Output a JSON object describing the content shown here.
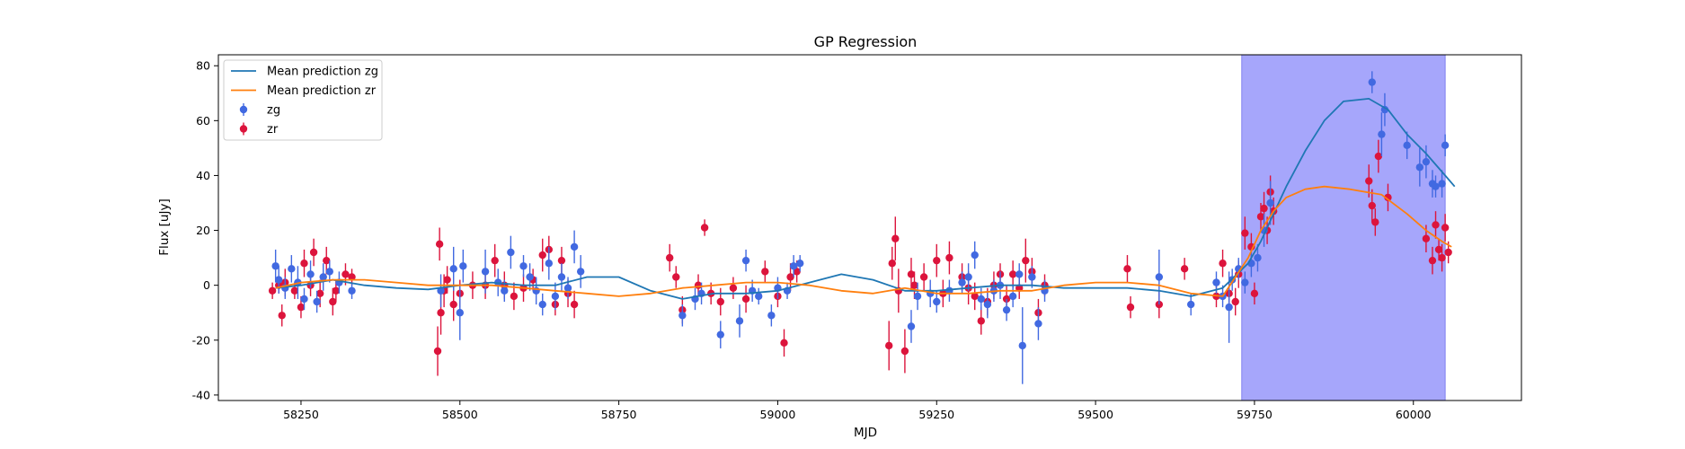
{
  "chart_data": {
    "type": "scatter",
    "title": "GP Regression",
    "xlabel": "MJD",
    "ylabel": "Flux [uJy]",
    "xlim": [
      58120,
      60170
    ],
    "ylim": [
      -42,
      84
    ],
    "xticks": [
      58250,
      58500,
      58750,
      59000,
      59250,
      59500,
      59750,
      60000
    ],
    "yticks": [
      -40,
      -20,
      0,
      20,
      40,
      60,
      80
    ],
    "grid": false,
    "legend_position": "top-left",
    "shaded_region": {
      "x0": 59730,
      "x1": 60050,
      "color": "#a6a6fb"
    },
    "colors": {
      "zg_points": "#4169e1",
      "zr_points": "#dc143c",
      "zg_mean": "#1f77b4",
      "zr_mean": "#ff7f0e"
    },
    "lines": [
      {
        "name": "Mean prediction zg",
        "color": "#1f77b4",
        "x": [
          58210,
          58250,
          58300,
          58350,
          58400,
          58450,
          58500,
          58550,
          58600,
          58650,
          58700,
          58750,
          58800,
          58850,
          58900,
          58950,
          59000,
          59050,
          59100,
          59150,
          59200,
          59250,
          59300,
          59350,
          59400,
          59450,
          59500,
          59550,
          59600,
          59650,
          59700,
          59740,
          59760,
          59780,
          59800,
          59830,
          59860,
          59890,
          59930,
          59960,
          59990,
          60020,
          60050,
          60065
        ],
        "y": [
          -1,
          0,
          2,
          0,
          -1,
          -1.5,
          0,
          1,
          0,
          0,
          3,
          3,
          -2,
          -5,
          -3,
          -3,
          -2,
          1,
          4,
          2,
          -2,
          -2,
          -1,
          0,
          0,
          -1,
          -1,
          -1,
          -2,
          -4,
          -1,
          8,
          16,
          26,
          36,
          49,
          60,
          67,
          68,
          64,
          55,
          48,
          40,
          36
        ]
      },
      {
        "name": "Mean prediction zr",
        "color": "#ff7f0e",
        "x": [
          58210,
          58250,
          58300,
          58350,
          58400,
          58450,
          58500,
          58550,
          58600,
          58650,
          58700,
          58750,
          58800,
          58850,
          58900,
          58950,
          59000,
          59050,
          59100,
          59150,
          59200,
          59250,
          59300,
          59350,
          59400,
          59450,
          59500,
          59550,
          59600,
          59650,
          59700,
          59740,
          59760,
          59780,
          59800,
          59830,
          59860,
          59900,
          59950,
          59990,
          60020,
          60045,
          60060
        ],
        "y": [
          -1,
          1,
          2,
          2,
          1,
          0,
          0,
          0,
          -1,
          -2,
          -3,
          -4,
          -3,
          -1,
          0,
          1,
          1,
          0,
          -2,
          -3,
          -1,
          -3,
          -3,
          -2,
          -2,
          0,
          1,
          1,
          0,
          -3,
          -4,
          10,
          20,
          27,
          32,
          35,
          36,
          35,
          33,
          26,
          20,
          16,
          14
        ]
      }
    ],
    "series": [
      {
        "name": "zg",
        "color": "#4169e1",
        "points": [
          [
            58210,
            7,
            6
          ],
          [
            58215,
            2,
            5
          ],
          [
            58225,
            -1,
            4
          ],
          [
            58235,
            6,
            5
          ],
          [
            58245,
            1,
            6
          ],
          [
            58255,
            -5,
            4
          ],
          [
            58265,
            4,
            5
          ],
          [
            58275,
            -6,
            4
          ],
          [
            58285,
            3,
            5
          ],
          [
            58295,
            5,
            4
          ],
          [
            58310,
            1,
            4
          ],
          [
            58330,
            -2,
            3
          ],
          [
            58470,
            -2,
            6
          ],
          [
            58490,
            6,
            8
          ],
          [
            58500,
            -10,
            10
          ],
          [
            58505,
            7,
            6
          ],
          [
            58540,
            5,
            8
          ],
          [
            58560,
            1,
            5
          ],
          [
            58570,
            -2,
            4
          ],
          [
            58580,
            12,
            6
          ],
          [
            58600,
            7,
            4
          ],
          [
            58610,
            3,
            5
          ],
          [
            58620,
            -2,
            5
          ],
          [
            58630,
            -7,
            4
          ],
          [
            58640,
            8,
            6
          ],
          [
            58650,
            -4,
            5
          ],
          [
            58660,
            3,
            5
          ],
          [
            58670,
            -1,
            4
          ],
          [
            58680,
            14,
            6
          ],
          [
            58690,
            5,
            6
          ],
          [
            58850,
            -11,
            4
          ],
          [
            58870,
            -5,
            4
          ],
          [
            58880,
            -3,
            4
          ],
          [
            58910,
            -18,
            5
          ],
          [
            58940,
            -13,
            6
          ],
          [
            58950,
            9,
            4
          ],
          [
            58960,
            -2,
            4
          ],
          [
            58970,
            -4,
            3
          ],
          [
            58990,
            -11,
            4
          ],
          [
            59000,
            -1,
            4
          ],
          [
            59015,
            -2,
            3
          ],
          [
            59025,
            7,
            4
          ],
          [
            59035,
            8,
            3
          ],
          [
            59210,
            -15,
            6
          ],
          [
            59220,
            -4,
            5
          ],
          [
            59240,
            -3,
            5
          ],
          [
            59250,
            -6,
            4
          ],
          [
            59270,
            -2,
            4
          ],
          [
            59290,
            1,
            4
          ],
          [
            59300,
            3,
            5
          ],
          [
            59310,
            11,
            5
          ],
          [
            59320,
            -5,
            4
          ],
          [
            59330,
            -7,
            5
          ],
          [
            59340,
            -2,
            4
          ],
          [
            59350,
            0,
            5
          ],
          [
            59360,
            -9,
            4
          ],
          [
            59370,
            -4,
            4
          ],
          [
            59380,
            4,
            4
          ],
          [
            59385,
            -22,
            14
          ],
          [
            59400,
            3,
            4
          ],
          [
            59410,
            -14,
            6
          ],
          [
            59420,
            -2,
            4
          ],
          [
            59600,
            3,
            10
          ],
          [
            59650,
            -7,
            4
          ],
          [
            59690,
            1,
            4
          ],
          [
            59700,
            -4,
            4
          ],
          [
            59710,
            -8,
            13
          ],
          [
            59715,
            2,
            4
          ],
          [
            59725,
            6,
            4
          ],
          [
            59735,
            1,
            4
          ],
          [
            59745,
            8,
            5
          ],
          [
            59755,
            10,
            5
          ],
          [
            59765,
            20,
            6
          ],
          [
            59775,
            30,
            8
          ],
          [
            59935,
            74,
            4
          ],
          [
            59950,
            55,
            8
          ],
          [
            59955,
            64,
            6
          ],
          [
            59990,
            51,
            5
          ],
          [
            60010,
            43,
            7
          ],
          [
            60020,
            45,
            6
          ],
          [
            60030,
            37,
            5
          ],
          [
            60035,
            36,
            4
          ],
          [
            60045,
            37,
            5
          ],
          [
            60050,
            51,
            4
          ]
        ]
      },
      {
        "name": "zr",
        "color": "#dc143c",
        "points": [
          [
            58205,
            -2,
            3
          ],
          [
            58215,
            0,
            3
          ],
          [
            58220,
            -11,
            4
          ],
          [
            58225,
            1,
            5
          ],
          [
            58240,
            -2,
            3
          ],
          [
            58250,
            -8,
            4
          ],
          [
            58255,
            8,
            5
          ],
          [
            58265,
            0,
            4
          ],
          [
            58270,
            12,
            5
          ],
          [
            58280,
            -3,
            5
          ],
          [
            58290,
            9,
            5
          ],
          [
            58300,
            -6,
            5
          ],
          [
            58305,
            -2,
            4
          ],
          [
            58320,
            4,
            4
          ],
          [
            58330,
            3,
            3
          ],
          [
            58465,
            -24,
            9
          ],
          [
            58468,
            15,
            6
          ],
          [
            58470,
            -10,
            8
          ],
          [
            58475,
            -2,
            6
          ],
          [
            58480,
            2,
            5
          ],
          [
            58490,
            -7,
            6
          ],
          [
            58500,
            -3,
            5
          ],
          [
            58520,
            0,
            5
          ],
          [
            58540,
            0,
            5
          ],
          [
            58555,
            9,
            6
          ],
          [
            58570,
            0,
            5
          ],
          [
            58585,
            -4,
            5
          ],
          [
            58600,
            -1,
            5
          ],
          [
            58615,
            2,
            4
          ],
          [
            58630,
            11,
            6
          ],
          [
            58640,
            13,
            5
          ],
          [
            58650,
            -7,
            4
          ],
          [
            58660,
            9,
            5
          ],
          [
            58670,
            -3,
            5
          ],
          [
            58680,
            -7,
            5
          ],
          [
            58830,
            10,
            5
          ],
          [
            58840,
            3,
            4
          ],
          [
            58850,
            -9,
            5
          ],
          [
            58875,
            0,
            4
          ],
          [
            58885,
            21,
            3
          ],
          [
            58895,
            -3,
            4
          ],
          [
            58910,
            -6,
            5
          ],
          [
            58930,
            -1,
            4
          ],
          [
            58950,
            -5,
            5
          ],
          [
            58980,
            5,
            4
          ],
          [
            59000,
            -4,
            4
          ],
          [
            59010,
            -21,
            5
          ],
          [
            59020,
            3,
            5
          ],
          [
            59030,
            5,
            4
          ],
          [
            59175,
            -22,
            9
          ],
          [
            59180,
            8,
            6
          ],
          [
            59185,
            17,
            8
          ],
          [
            59190,
            -2,
            8
          ],
          [
            59200,
            -24,
            8
          ],
          [
            59210,
            4,
            6
          ],
          [
            59215,
            0,
            5
          ],
          [
            59230,
            3,
            5
          ],
          [
            59250,
            9,
            6
          ],
          [
            59260,
            -3,
            5
          ],
          [
            59270,
            10,
            6
          ],
          [
            59290,
            3,
            5
          ],
          [
            59300,
            -1,
            6
          ],
          [
            59310,
            -4,
            5
          ],
          [
            59320,
            -13,
            5
          ],
          [
            59330,
            -6,
            5
          ],
          [
            59340,
            0,
            5
          ],
          [
            59350,
            4,
            4
          ],
          [
            59360,
            -5,
            5
          ],
          [
            59370,
            4,
            5
          ],
          [
            59380,
            -1,
            4
          ],
          [
            59390,
            9,
            8
          ],
          [
            59400,
            5,
            5
          ],
          [
            59410,
            -10,
            5
          ],
          [
            59420,
            0,
            4
          ],
          [
            59550,
            6,
            5
          ],
          [
            59555,
            -8,
            4
          ],
          [
            59600,
            -7,
            5
          ],
          [
            59640,
            6,
            4
          ],
          [
            59690,
            -4,
            4
          ],
          [
            59700,
            8,
            5
          ],
          [
            59710,
            -3,
            4
          ],
          [
            59720,
            -6,
            5
          ],
          [
            59725,
            4,
            5
          ],
          [
            59735,
            19,
            6
          ],
          [
            59745,
            14,
            5
          ],
          [
            59750,
            -3,
            4
          ],
          [
            59760,
            25,
            5
          ],
          [
            59765,
            28,
            6
          ],
          [
            59770,
            20,
            5
          ],
          [
            59775,
            34,
            6
          ],
          [
            59780,
            27,
            5
          ],
          [
            59930,
            38,
            6
          ],
          [
            59935,
            29,
            6
          ],
          [
            59940,
            23,
            5
          ],
          [
            59945,
            47,
            6
          ],
          [
            59960,
            32,
            5
          ],
          [
            60020,
            17,
            5
          ],
          [
            60030,
            9,
            5
          ],
          [
            60035,
            22,
            5
          ],
          [
            60040,
            13,
            4
          ],
          [
            60045,
            10,
            5
          ],
          [
            60050,
            21,
            5
          ],
          [
            60055,
            12,
            4
          ]
        ]
      }
    ],
    "legend": [
      {
        "label": "Mean prediction zg",
        "kind": "line",
        "color": "#1f77b4"
      },
      {
        "label": "Mean prediction zr",
        "kind": "line",
        "color": "#ff7f0e"
      },
      {
        "label": "zg",
        "kind": "marker",
        "color": "#4169e1"
      },
      {
        "label": "zr",
        "kind": "marker",
        "color": "#dc143c"
      }
    ]
  }
}
